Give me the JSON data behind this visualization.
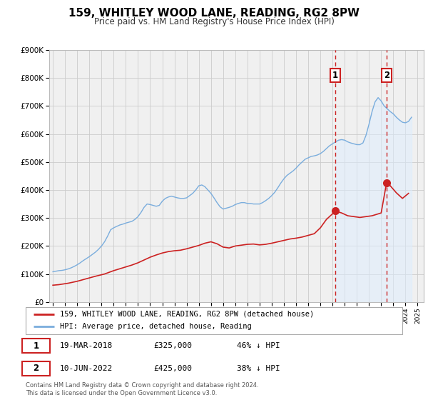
{
  "title": "159, WHITLEY WOOD LANE, READING, RG2 8PW",
  "subtitle": "Price paid vs. HM Land Registry's House Price Index (HPI)",
  "title_fontsize": 11,
  "subtitle_fontsize": 8.5,
  "ylim": [
    0,
    900000
  ],
  "yticks": [
    0,
    100000,
    200000,
    300000,
    400000,
    500000,
    600000,
    700000,
    800000,
    900000
  ],
  "ytick_labels": [
    "£0",
    "£100K",
    "£200K",
    "£300K",
    "£400K",
    "£500K",
    "£600K",
    "£700K",
    "£800K",
    "£900K"
  ],
  "xlim_start": 1994.7,
  "xlim_end": 2025.5,
  "hpi_color": "#7aaddd",
  "price_color": "#cc2222",
  "marker_color": "#cc2222",
  "vline_color": "#cc2222",
  "grid_color": "#cccccc",
  "bg_color": "#f0f0f0",
  "legend_label_price": "159, WHITLEY WOOD LANE, READING, RG2 8PW (detached house)",
  "legend_label_hpi": "HPI: Average price, detached house, Reading",
  "transaction1_date": "19-MAR-2018",
  "transaction1_price": "£325,000",
  "transaction1_pct": "46% ↓ HPI",
  "transaction1_year": 2018.21,
  "transaction1_value": 325000,
  "transaction2_date": "10-JUN-2022",
  "transaction2_price": "£425,000",
  "transaction2_pct": "38% ↓ HPI",
  "transaction2_year": 2022.44,
  "transaction2_value": 425000,
  "footer_text": "Contains HM Land Registry data © Crown copyright and database right 2024.\nThis data is licensed under the Open Government Licence v3.0.",
  "hpi_years": [
    1995.0,
    1995.25,
    1995.5,
    1995.75,
    1996.0,
    1996.25,
    1996.5,
    1996.75,
    1997.0,
    1997.25,
    1997.5,
    1997.75,
    1998.0,
    1998.25,
    1998.5,
    1998.75,
    1999.0,
    1999.25,
    1999.5,
    1999.75,
    2000.0,
    2000.25,
    2000.5,
    2000.75,
    2001.0,
    2001.25,
    2001.5,
    2001.75,
    2002.0,
    2002.25,
    2002.5,
    2002.75,
    2003.0,
    2003.25,
    2003.5,
    2003.75,
    2004.0,
    2004.25,
    2004.5,
    2004.75,
    2005.0,
    2005.25,
    2005.5,
    2005.75,
    2006.0,
    2006.25,
    2006.5,
    2006.75,
    2007.0,
    2007.25,
    2007.5,
    2007.75,
    2008.0,
    2008.25,
    2008.5,
    2008.75,
    2009.0,
    2009.25,
    2009.5,
    2009.75,
    2010.0,
    2010.25,
    2010.5,
    2010.75,
    2011.0,
    2011.25,
    2011.5,
    2011.75,
    2012.0,
    2012.25,
    2012.5,
    2012.75,
    2013.0,
    2013.25,
    2013.5,
    2013.75,
    2014.0,
    2014.25,
    2014.5,
    2014.75,
    2015.0,
    2015.25,
    2015.5,
    2015.75,
    2016.0,
    2016.25,
    2016.5,
    2016.75,
    2017.0,
    2017.25,
    2017.5,
    2017.75,
    2018.0,
    2018.25,
    2018.5,
    2018.75,
    2019.0,
    2019.25,
    2019.5,
    2019.75,
    2020.0,
    2020.25,
    2020.5,
    2020.75,
    2021.0,
    2021.25,
    2021.5,
    2021.75,
    2022.0,
    2022.25,
    2022.5,
    2022.75,
    2023.0,
    2023.25,
    2023.5,
    2023.75,
    2024.0,
    2024.25,
    2024.5
  ],
  "hpi_values": [
    108000,
    110000,
    112000,
    113000,
    115000,
    118000,
    122000,
    127000,
    133000,
    140000,
    148000,
    155000,
    162000,
    170000,
    178000,
    188000,
    200000,
    215000,
    235000,
    258000,
    265000,
    270000,
    275000,
    278000,
    282000,
    285000,
    288000,
    295000,
    305000,
    320000,
    338000,
    350000,
    348000,
    345000,
    342000,
    345000,
    360000,
    370000,
    375000,
    378000,
    375000,
    372000,
    370000,
    370000,
    372000,
    380000,
    388000,
    400000,
    415000,
    418000,
    412000,
    400000,
    388000,
    372000,
    355000,
    340000,
    332000,
    335000,
    338000,
    342000,
    348000,
    352000,
    355000,
    355000,
    352000,
    352000,
    350000,
    350000,
    350000,
    355000,
    362000,
    370000,
    380000,
    392000,
    408000,
    425000,
    440000,
    452000,
    460000,
    468000,
    478000,
    490000,
    500000,
    510000,
    515000,
    520000,
    522000,
    525000,
    530000,
    538000,
    548000,
    558000,
    565000,
    572000,
    578000,
    580000,
    578000,
    572000,
    568000,
    565000,
    562000,
    562000,
    568000,
    595000,
    635000,
    680000,
    715000,
    730000,
    718000,
    700000,
    690000,
    680000,
    672000,
    660000,
    650000,
    642000,
    640000,
    645000,
    660000
  ],
  "price_years": [
    1995.0,
    1995.5,
    1996.25,
    1997.0,
    1997.75,
    1998.5,
    1999.25,
    2000.0,
    2000.75,
    2001.5,
    2002.0,
    2002.5,
    2003.0,
    2003.5,
    2004.0,
    2004.5,
    2005.0,
    2005.5,
    2006.0,
    2006.5,
    2007.0,
    2007.5,
    2008.0,
    2008.5,
    2009.0,
    2009.5,
    2010.0,
    2010.5,
    2011.0,
    2011.5,
    2012.0,
    2012.5,
    2013.0,
    2013.5,
    2014.0,
    2014.5,
    2015.0,
    2015.5,
    2016.0,
    2016.5,
    2017.0,
    2017.5,
    2018.0,
    2018.21,
    2018.75,
    2019.25,
    2019.75,
    2020.25,
    2020.75,
    2021.25,
    2022.0,
    2022.44,
    2022.75,
    2023.25,
    2023.75,
    2024.25
  ],
  "price_values": [
    60000,
    62000,
    67000,
    74000,
    83000,
    92000,
    100000,
    112000,
    122000,
    132000,
    140000,
    150000,
    160000,
    168000,
    175000,
    180000,
    183000,
    185000,
    190000,
    196000,
    202000,
    210000,
    215000,
    208000,
    196000,
    193000,
    200000,
    203000,
    206000,
    207000,
    204000,
    206000,
    210000,
    215000,
    220000,
    225000,
    228000,
    232000,
    238000,
    244000,
    265000,
    295000,
    315000,
    325000,
    318000,
    308000,
    305000,
    302000,
    305000,
    308000,
    318000,
    425000,
    415000,
    390000,
    370000,
    388000
  ]
}
